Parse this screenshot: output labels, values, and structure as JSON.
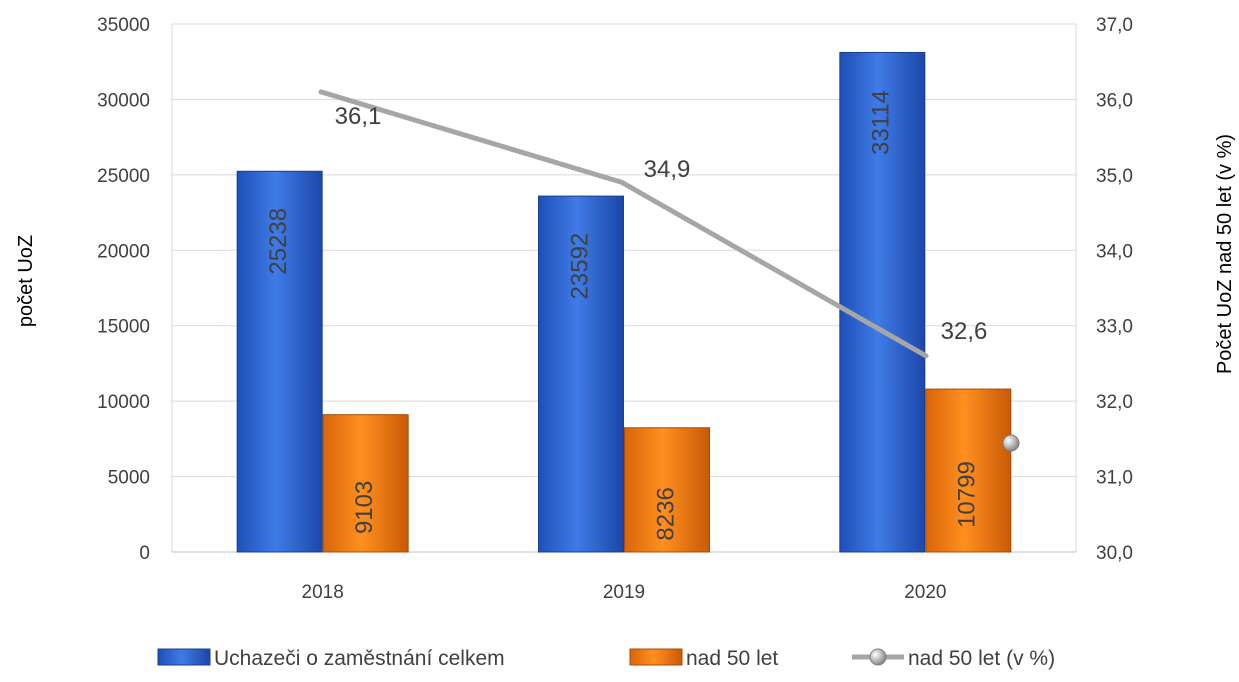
{
  "chart_data": {
    "type": "bar",
    "categories": [
      "2018",
      "2019",
      "2020"
    ],
    "series": [
      {
        "name": "Uchazeči o zaměstnání celkem",
        "kind": "bar",
        "axis": "left",
        "color": "#2E63D3",
        "values": [
          25238,
          23592,
          33114
        ],
        "labels": [
          "25238",
          "23592",
          "33114"
        ]
      },
      {
        "name": "nad 50 let",
        "kind": "bar",
        "axis": "left",
        "color": "#F0780A",
        "values": [
          9103,
          8236,
          10799
        ],
        "labels": [
          "9103",
          "8236",
          "10799"
        ]
      },
      {
        "name": "nad 50 let (v %)",
        "kind": "line",
        "axis": "right",
        "color": "#A6A6A6",
        "values": [
          36.1,
          34.9,
          32.6
        ],
        "labels": [
          "36,1",
          "34,9",
          "32,6"
        ]
      }
    ],
    "y_left": {
      "label": "počet UoZ",
      "min": 0,
      "max": 35000,
      "ticks": [
        "0",
        "5000",
        "10000",
        "15000",
        "20000",
        "25000",
        "30000",
        "35000"
      ]
    },
    "y_right": {
      "label": "Počet UoZ nad 50 let (v %)",
      "min": 30,
      "max": 37,
      "ticks": [
        "30,0",
        "31,0",
        "32,0",
        "33,0",
        "34,0",
        "35,0",
        "36,0",
        "37,0"
      ]
    },
    "grid": true,
    "legend_position": "bottom"
  }
}
